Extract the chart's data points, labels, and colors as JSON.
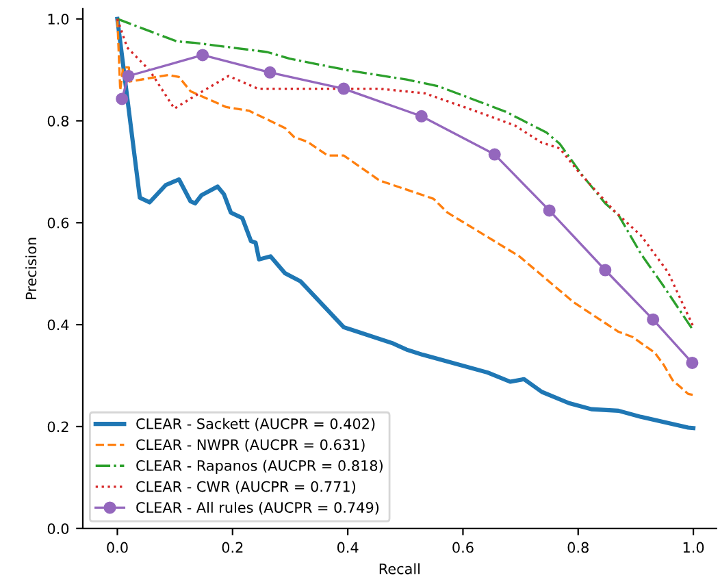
{
  "chart_data": {
    "type": "line",
    "xlabel": "Recall",
    "ylabel": "Precision",
    "xlim": [
      -0.06,
      1.04
    ],
    "ylim": [
      0,
      1.02
    ],
    "xticks": [
      {
        "value": 0,
        "label": "0.0"
      },
      0.2,
      0.4,
      0.6,
      0.8,
      {
        "value": 1,
        "label": "1.0"
      }
    ],
    "yticks": [
      {
        "value": 0,
        "label": "0.0"
      },
      0.2,
      0.4,
      0.6,
      0.8,
      {
        "value": 1,
        "label": "1.0"
      }
    ],
    "grid": false,
    "legend": "bottom left",
    "series": [
      {
        "name": "CLEAR - Sackett (AUCPR = 0.402)",
        "color": "#1f77b4",
        "line_style": "solid",
        "marker": "none",
        "x": [
          0,
          0.039,
          0.056,
          0.084,
          0.107,
          0.127,
          0.135,
          0.146,
          0.174,
          0.185,
          0.197,
          0.217,
          0.232,
          0.24,
          0.246,
          0.266,
          0.291,
          0.318,
          0.393,
          0.479,
          0.502,
          0.53,
          0.643,
          0.682,
          0.706,
          0.737,
          0.784,
          0.823,
          0.87,
          0.909,
          0.991,
          1.0
        ],
        "values": [
          1.0,
          0.649,
          0.64,
          0.674,
          0.685,
          0.642,
          0.638,
          0.654,
          0.671,
          0.656,
          0.62,
          0.609,
          0.564,
          0.561,
          0.528,
          0.534,
          0.501,
          0.485,
          0.395,
          0.363,
          0.351,
          0.341,
          0.306,
          0.288,
          0.293,
          0.268,
          0.246,
          0.234,
          0.231,
          0.219,
          0.198,
          0.197
        ]
      },
      {
        "name": "CLEAR - NWPR (AUCPR = 0.631)",
        "color": "#ff7f0e",
        "line_style": "dashed",
        "marker": "none",
        "x": [
          0,
          0.005,
          0.01,
          0.02,
          0.021,
          0.088,
          0.107,
          0.127,
          0.189,
          0.228,
          0.291,
          0.307,
          0.33,
          0.365,
          0.393,
          0.455,
          0.502,
          0.549,
          0.573,
          0.698,
          0.792,
          0.87,
          0.894,
          0.933,
          0.948,
          0.964,
          0.991,
          1.0
        ],
        "values": [
          1.0,
          0.86,
          0.905,
          0.905,
          0.877,
          0.89,
          0.886,
          0.858,
          0.827,
          0.82,
          0.786,
          0.768,
          0.759,
          0.732,
          0.732,
          0.683,
          0.665,
          0.647,
          0.62,
          0.534,
          0.444,
          0.386,
          0.376,
          0.345,
          0.322,
          0.291,
          0.264,
          0.262
        ]
      },
      {
        "name": "CLEAR - Rapanos (AUCPR = 0.818)",
        "color": "#2ca02c",
        "line_style": "dashdot",
        "marker": "none",
        "x": [
          0,
          0.103,
          0.135,
          0.26,
          0.299,
          0.401,
          0.502,
          0.557,
          0.674,
          0.745,
          0.768,
          0.808,
          0.847,
          0.87,
          0.909,
          0.948,
          0.999,
          1.0
        ],
        "values": [
          1.0,
          0.956,
          0.953,
          0.935,
          0.922,
          0.899,
          0.881,
          0.868,
          0.818,
          0.777,
          0.755,
          0.692,
          0.638,
          0.615,
          0.539,
          0.476,
          0.39,
          0.388
        ]
      },
      {
        "name": "CLEAR - CWR (AUCPR = 0.771)",
        "color": "#d62728",
        "line_style": "dotted",
        "marker": "none",
        "x": [
          0,
          0.017,
          0.056,
          0.099,
          0.142,
          0.193,
          0.244,
          0.455,
          0.534,
          0.612,
          0.69,
          0.737,
          0.768,
          0.8,
          0.862,
          0.909,
          0.956,
          1.0
        ],
        "values": [
          1.0,
          0.944,
          0.899,
          0.824,
          0.854,
          0.888,
          0.863,
          0.863,
          0.854,
          0.823,
          0.791,
          0.757,
          0.746,
          0.701,
          0.624,
          0.575,
          0.503,
          0.396
        ]
      },
      {
        "name": "CLEAR - All rules (AUCPR = 0.749)",
        "color": "#9467bd",
        "line_style": "solid",
        "marker": "circle",
        "x": [
          0.008,
          0.019,
          0.148,
          0.265,
          0.393,
          0.528,
          0.655,
          0.75,
          0.847,
          0.93,
          0.998
        ],
        "values": [
          0.843,
          0.888,
          0.929,
          0.895,
          0.863,
          0.809,
          0.734,
          0.624,
          0.507,
          0.41,
          0.325
        ]
      }
    ]
  }
}
